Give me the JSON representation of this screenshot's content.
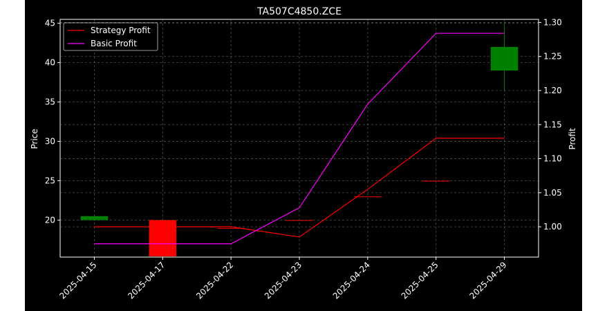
{
  "chart_data": {
    "type": "candlestick",
    "title": "TA507C4850.ZCE",
    "background": "#000000",
    "grid": true,
    "legend_position": "upper-left",
    "left_axis": {
      "label": "Price",
      "ticks": [
        20,
        25,
        30,
        35,
        40,
        45
      ],
      "range": [
        15.3,
        45.5
      ]
    },
    "right_axis": {
      "label": "Profit",
      "ticks": [
        "1.00",
        "1.05",
        "1.10",
        "1.15",
        "1.20",
        "1.25",
        "1.30"
      ],
      "range": [
        0.9555,
        1.3045
      ]
    },
    "categories": [
      "2025-04-15",
      "2025-04-17",
      "2025-04-22",
      "2025-04-23",
      "2025-04-24",
      "2025-04-25",
      "2025-04-29"
    ],
    "candles": [
      {
        "date": "2025-04-15",
        "open": 20.0,
        "high": 20.5,
        "low": 20.0,
        "close": 20.5,
        "color": "#008000"
      },
      {
        "date": "2025-04-17",
        "open": 20.0,
        "high": 20.0,
        "low": 15.4,
        "close": 15.4,
        "color": "#ff0000"
      },
      {
        "date": "2025-04-22",
        "open": 19.0,
        "high": 19.0,
        "low": 19.0,
        "close": 19.0,
        "color": "#ff0000"
      },
      {
        "date": "2025-04-23",
        "open": 20.0,
        "high": 20.0,
        "low": 20.0,
        "close": 20.0,
        "color": "#ff0000"
      },
      {
        "date": "2025-04-24",
        "open": 23.0,
        "high": 23.0,
        "low": 23.0,
        "close": 23.0,
        "color": "#ff0000"
      },
      {
        "date": "2025-04-25",
        "open": 25.0,
        "high": 25.0,
        "low": 25.0,
        "close": 25.0,
        "color": "#ff0000"
      },
      {
        "date": "2025-04-29",
        "open": 39.0,
        "high": 45.0,
        "low": 36.5,
        "close": 42.0,
        "color": "#008000"
      }
    ],
    "series": [
      {
        "name": "Strategy Profit",
        "color": "#ff0000",
        "values": [
          1.0,
          1.0,
          1.0,
          0.985,
          1.055,
          1.13,
          1.13
        ]
      },
      {
        "name": "Basic Profit",
        "color": "#ff00ff",
        "values": [
          0.975,
          0.975,
          0.975,
          1.028,
          1.18,
          1.284,
          1.284
        ]
      }
    ]
  }
}
